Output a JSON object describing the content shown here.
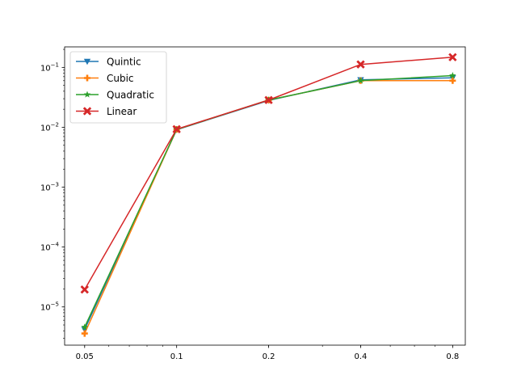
{
  "chart_data": {
    "type": "line",
    "title": "",
    "xlabel": "",
    "ylabel": "",
    "x_scale": "log2",
    "y_scale": "log10",
    "grid": false,
    "legend_position": "top-left",
    "x": [
      0.05,
      0.1,
      0.2,
      0.4,
      0.8
    ],
    "x_ticks": [
      {
        "value": 0.05,
        "label": "0.05"
      },
      {
        "value": 0.1,
        "label": "0.1"
      },
      {
        "value": 0.2,
        "label": "0.2"
      },
      {
        "value": 0.4,
        "label": "0.4"
      },
      {
        "value": 0.8,
        "label": "0.8"
      }
    ],
    "xlim": [
      0.043,
      0.88
    ],
    "y_ticks": [
      {
        "value": 1e-05,
        "base": "10",
        "exp": "−5"
      },
      {
        "value": 0.0001,
        "base": "10",
        "exp": "−4"
      },
      {
        "value": 0.001,
        "base": "10",
        "exp": "−3"
      },
      {
        "value": 0.01,
        "base": "10",
        "exp": "−2"
      },
      {
        "value": 0.1,
        "base": "10",
        "exp": "−1"
      }
    ],
    "ylim": [
      2.3e-06,
      0.22
    ],
    "series": [
      {
        "name": "Quintic",
        "color": "#1f77b4",
        "marker": "triangle-down",
        "values": [
          4.2e-06,
          0.0091,
          0.028,
          0.062,
          0.067
        ]
      },
      {
        "name": "Cubic",
        "color": "#ff7f0e",
        "marker": "plus",
        "values": [
          3.6e-06,
          0.0092,
          0.0285,
          0.06,
          0.06
        ]
      },
      {
        "name": "Quadratic",
        "color": "#2ca02c",
        "marker": "star",
        "values": [
          4.6e-06,
          0.0092,
          0.0285,
          0.06,
          0.073
        ]
      },
      {
        "name": "Linear",
        "color": "#d62728",
        "marker": "x",
        "values": [
          1.95e-05,
          0.0093,
          0.0285,
          0.112,
          0.148
        ]
      }
    ]
  }
}
